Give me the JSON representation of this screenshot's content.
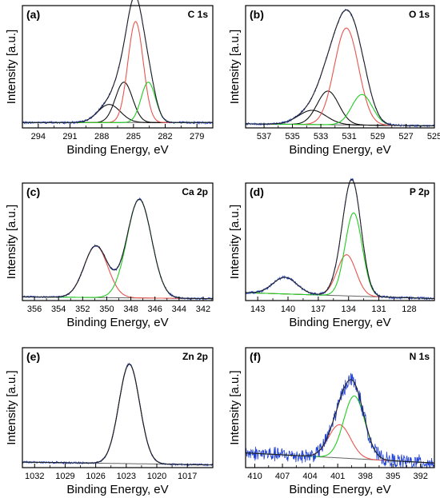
{
  "chart_data": [
    {
      "type": "line",
      "panel": "(a)",
      "title": "C 1s",
      "xlabel": "Binding Energy, eV",
      "ylabel": "Intensity [a.u.]",
      "x_ticks": [
        294,
        291,
        288,
        285,
        282,
        279
      ],
      "xlim": [
        295.5,
        277.5
      ],
      "ylim": [
        0,
        1.15
      ],
      "background": [
        0.05,
        0.05
      ],
      "noise": 0.008,
      "components": [
        {
          "color": "#111111",
          "center": 287.3,
          "height": 0.17,
          "fwhm": 2.5
        },
        {
          "color": "#111111",
          "center": 285.9,
          "height": 0.38,
          "fwhm": 1.9
        },
        {
          "color": "#e8554e",
          "center": 284.8,
          "height": 0.95,
          "fwhm": 1.7
        },
        {
          "color": "#22cc22",
          "center": 283.6,
          "height": 0.38,
          "fwhm": 1.6
        }
      ]
    },
    {
      "type": "line",
      "panel": "(b)",
      "title": "O 1s",
      "xlabel": "Binding Energy, eV",
      "ylabel": "Intensity [a.u.]",
      "x_ticks": [
        537,
        535,
        533,
        531,
        529,
        527,
        525
      ],
      "xlim": [
        538.3,
        525
      ],
      "ylim": [
        0,
        1.2
      ],
      "background": [
        0.04,
        0.02
      ],
      "noise": 0.008,
      "components": [
        {
          "color": "#111111",
          "center": 533.6,
          "height": 0.14,
          "fwhm": 2.3
        },
        {
          "color": "#111111",
          "center": 532.5,
          "height": 0.33,
          "fwhm": 1.8
        },
        {
          "color": "#e8554e",
          "center": 531.2,
          "height": 0.95,
          "fwhm": 2.0
        },
        {
          "color": "#22cc22",
          "center": 530.1,
          "height": 0.3,
          "fwhm": 1.7
        }
      ]
    },
    {
      "type": "line",
      "panel": "(c)",
      "title": "Ca 2p",
      "xlabel": "Binding Energy, eV",
      "ylabel": "Intensity [a.u.]",
      "x_ticks": [
        356,
        354,
        352,
        350,
        348,
        346,
        344,
        342
      ],
      "xlim": [
        357,
        341.2
      ],
      "ylim": [
        0,
        1.25
      ],
      "background": [
        0.04,
        0.02
      ],
      "noise": 0.008,
      "components": [
        {
          "color": "#e8554e",
          "center": 350.9,
          "height": 0.55,
          "fwhm": 2.3
        },
        {
          "color": "#22cc22",
          "center": 347.3,
          "height": 1.05,
          "fwhm": 2.4
        }
      ]
    },
    {
      "type": "line",
      "panel": "(d)",
      "title": "P 2p",
      "xlabel": "Binding Energy, eV",
      "ylabel": "Intensity [a.u.]",
      "x_ticks": [
        143,
        140,
        137,
        134,
        131,
        128
      ],
      "xlim": [
        144.2,
        125.5
      ],
      "ylim": [
        0,
        1.2
      ],
      "background": [
        0.08,
        0.02
      ],
      "noise": 0.01,
      "extra_peak": {
        "center": 140.3,
        "height": 0.17,
        "fwhm": 2.8
      },
      "components": [
        {
          "color": "#e8554e",
          "center": 134.2,
          "height": 0.42,
          "fwhm": 2.2
        },
        {
          "color": "#22cc22",
          "center": 133.5,
          "height": 0.85,
          "fwhm": 2.0
        }
      ]
    },
    {
      "type": "line",
      "panel": "(e)",
      "title": "Zn 2p",
      "xlabel": "Binding Energy, eV",
      "ylabel": "Intensity [a.u.]",
      "x_ticks": [
        1032,
        1029,
        1026,
        1023,
        1020,
        1017
      ],
      "xlim": [
        1033.2,
        1014.5
      ],
      "ylim": [
        0,
        1.3
      ],
      "background": [
        0.06,
        0.03
      ],
      "noise": 0.008,
      "components": [
        {
          "color": "#111111",
          "center": 1022.7,
          "height": 1.08,
          "fwhm": 2.4
        }
      ]
    },
    {
      "type": "line",
      "panel": "(f)",
      "title": "N 1s",
      "xlabel": "Binding Energy, eV",
      "ylabel": "Intensity [a.u.]",
      "x_ticks": [
        410,
        407,
        404,
        401,
        398,
        395,
        392
      ],
      "xlim": [
        411,
        390.5
      ],
      "ylim": [
        0,
        1.3
      ],
      "background": [
        0.16,
        0.05
      ],
      "noise": 0.06,
      "components": [
        {
          "color": "#e8554e",
          "center": 400.8,
          "height": 0.36,
          "fwhm": 2.8
        },
        {
          "color": "#22cc22",
          "center": 399.2,
          "height": 0.68,
          "fwhm": 2.7
        }
      ]
    }
  ]
}
